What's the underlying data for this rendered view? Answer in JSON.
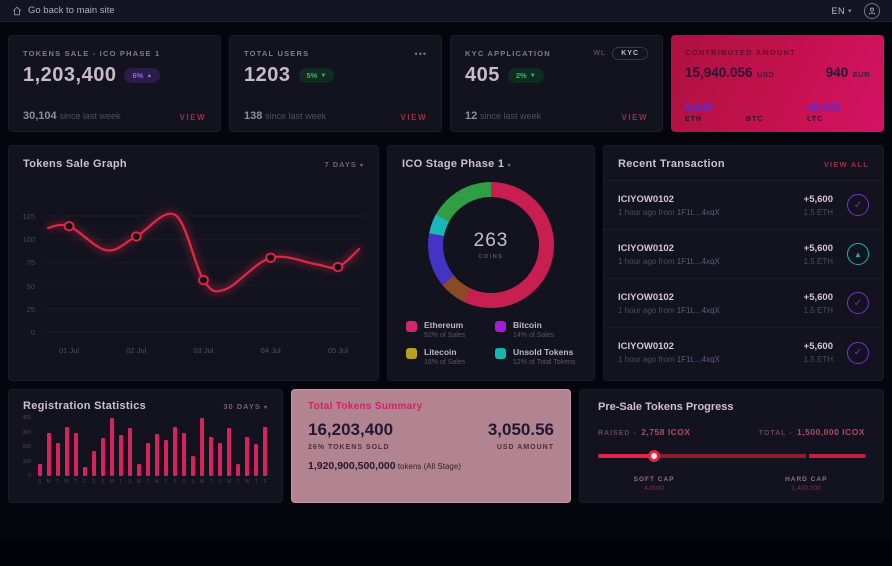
{
  "topbar": {
    "back": "Go back to main site",
    "lang": "EN",
    "chevron": "▾"
  },
  "cards": [
    {
      "label": "TOKENS SALE - ICO PHASE 1",
      "value": "1,203,400",
      "badge": "6%",
      "badge_dir": "▲",
      "sub_value": "30,104",
      "sub_label": "since last week",
      "link": "VIEW"
    },
    {
      "label": "TOTAL USERS",
      "menu": "•••",
      "value": "1203",
      "badge": "5%",
      "badge_dir": "▼",
      "sub_value": "138",
      "sub_label": "since last week",
      "link": "VIEW"
    },
    {
      "label": "KYC APPLICATION",
      "wl": "WL",
      "kyc": "KYC",
      "value": "405",
      "badge": "2%",
      "badge_dir": "▼",
      "sub_value": "12",
      "sub_label": "since last week",
      "link": "VIEW"
    },
    {
      "label": "CONTRIBUTED AMOUNT",
      "usd_value": "15,940.056",
      "usd_unit": "USD",
      "eur_value": "940",
      "eur_unit": "EUR",
      "coins": [
        {
          "value": "5.646",
          "unit": "ETH"
        },
        {
          "value": "~",
          "unit": "BTC"
        },
        {
          "value": "40.506",
          "unit": "LTC"
        }
      ]
    }
  ],
  "tokens_graph": {
    "title": "Tokens Sale Graph",
    "range": "7 DAYS",
    "chevron": "▾"
  },
  "ico_stage": {
    "title": "ICO Stage Phase 1",
    "chevron": "▾",
    "center_value": "263",
    "center_label": "COINS",
    "legend": [
      {
        "name": "Ethereum",
        "detail": "52% of Sales",
        "color": "#d6246e"
      },
      {
        "name": "Bitcoin",
        "detail": "14% of Sales",
        "color": "#a21ed6"
      },
      {
        "name": "Litecoin",
        "detail": "16% of Sales",
        "color": "#b8a025"
      },
      {
        "name": "Unsold Tokens",
        "detail": "12% of Total Tokens",
        "color": "#13b8b0"
      }
    ]
  },
  "transactions": {
    "title": "Recent Transaction",
    "view_all": "VIEW ALL",
    "rows": [
      {
        "id": "ICIYOW0102",
        "time": "1 hour ago from",
        "address": "1F1t....4xqX",
        "amount": "+5,600",
        "eth": "1.5 ETH",
        "icon": "check"
      },
      {
        "id": "ICIYOW0102",
        "time": "1 hour ago from",
        "address": "1F1t....4xqX",
        "amount": "+5,600",
        "eth": "1.5 ETH",
        "icon": "eth"
      },
      {
        "id": "ICIYOW0102",
        "time": "1 hour ago from",
        "address": "1F1t....4xqX",
        "amount": "+5,600",
        "eth": "1.5 ETH",
        "icon": "check"
      },
      {
        "id": "ICIYOW0102",
        "time": "1 hour ago from",
        "address": "1F1t....4xqX",
        "amount": "+5,600",
        "eth": "1.5 ETH",
        "icon": "check"
      }
    ]
  },
  "registration": {
    "title": "Registration Statistics",
    "range": "30 DAYS",
    "chevron": "▾"
  },
  "summary": {
    "title": "Total Tokens Summary",
    "tokens_value": "16,203,400",
    "tokens_label": "26% TOKENS SOLD",
    "usd_value": "3,050.56",
    "usd_label": "USD AMOUNT",
    "total_value": "1,920,900,500,000",
    "total_label": "tokens",
    "total_note": "(All Stage)"
  },
  "presale": {
    "title": "Pre-Sale Tokens Progress",
    "raised_label": "RAISED -",
    "raised_value": "2,758 ICOX",
    "total_label": "TOTAL -",
    "total_value": "1,500,000 ICOX",
    "soft_cap_label": "SOFT CAP",
    "soft_cap_value": "4,0000",
    "hard_cap_label": "HARD CAP",
    "hard_cap_value": "1,400,000",
    "progress_pct": 21,
    "hardcap_pct": 78
  },
  "chart_data": [
    {
      "type": "line",
      "title": "Tokens Sale Graph",
      "x": [
        "01 Jul",
        "02 Jul",
        "03 Jul",
        "04 Jul",
        "05 Jul"
      ],
      "values": [
        114,
        103,
        56,
        80,
        70
      ],
      "ylim": [
        0,
        125
      ],
      "yticks": [
        0,
        25,
        50,
        75,
        100,
        125
      ],
      "color": "#e02845",
      "grid": true,
      "legend_position": "none",
      "curve": [
        [
          0,
          112
        ],
        [
          0.07,
          114
        ],
        [
          0.19,
          88
        ],
        [
          0.285,
          103
        ],
        [
          0.41,
          126
        ],
        [
          0.5,
          56
        ],
        [
          0.57,
          46
        ],
        [
          0.715,
          80
        ],
        [
          0.86,
          73
        ],
        [
          0.93,
          70
        ],
        [
          1,
          90
        ]
      ],
      "marker_x": [
        0.07,
        0.285,
        0.5,
        0.715,
        0.93
      ]
    },
    {
      "type": "pie",
      "title": "ICO Stage Phase 1",
      "center_value": 263,
      "center_label": "COINS",
      "labels": [
        "Ethereum",
        "Bitcoin",
        "Litecoin",
        "Unsold Tokens"
      ],
      "values": [
        52,
        14,
        16,
        12
      ],
      "visual_segments": [
        {
          "color": "#c81e50",
          "pct": 57
        },
        {
          "color": "#8a4a26",
          "pct": 7
        },
        {
          "color": "#4534c4",
          "pct": 14
        },
        {
          "color": "#16b8b8",
          "pct": 5
        },
        {
          "color": "#2f9e44",
          "pct": 17
        }
      ]
    },
    {
      "type": "bar",
      "title": "Registration Statistics",
      "ylim": [
        0,
        400
      ],
      "yticks": [
        400,
        300,
        200,
        100,
        0
      ],
      "color": "#d6235c",
      "categories": [
        "S",
        "M",
        "T",
        "W",
        "T",
        "F",
        "S",
        "S",
        "M",
        "T",
        "S",
        "M",
        "T",
        "W",
        "T",
        "F",
        "S",
        "S",
        "M",
        "T",
        "S",
        "M",
        "T",
        "W",
        "T",
        "F"
      ],
      "values": [
        80,
        300,
        230,
        340,
        300,
        60,
        170,
        260,
        400,
        280,
        330,
        80,
        230,
        290,
        250,
        340,
        300,
        140,
        400,
        270,
        230,
        330,
        80,
        270,
        220,
        340
      ]
    }
  ]
}
